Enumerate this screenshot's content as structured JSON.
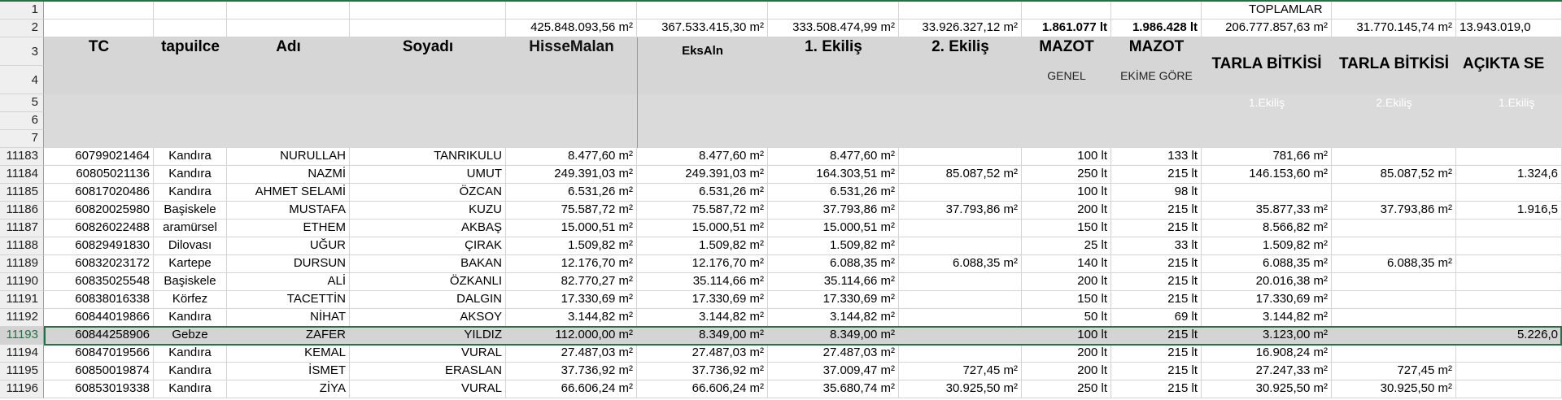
{
  "header": {
    "totals_title": "TOPLAMLAR",
    "totals": [
      "425.848.093,56 m²",
      "367.533.415,30 m²",
      "333.508.474,99 m²",
      "33.926.327,12 m²",
      "1.861.077 lt",
      "1.986.428 lt",
      "206.777.857,63 m²",
      "31.770.145,74 m²",
      "13.943.019,0"
    ],
    "columns": [
      "TC",
      "tapuilce",
      "Adı",
      "Soyadı",
      "HisseMalan",
      "EksAln",
      "1. Ekiliş",
      "2. Ekiliş",
      "MAZOT",
      "MAZOT",
      "TARLA BİTKİSİ",
      "TARLA BİTKİSİ",
      "AÇIKTA SE"
    ],
    "mazot_sub": [
      "GENEL",
      "EKİME GÖRE"
    ],
    "sub_labels": [
      "1.Ekiliş",
      "2.Ekiliş",
      "1.Ekiliş"
    ]
  },
  "row_numbers": [
    "1",
    "2",
    "3",
    "4",
    "5",
    "6",
    "7"
  ],
  "rows": [
    {
      "n": "11183",
      "tc": "60799021464",
      "ilce": "Kandıra",
      "ad": "NURULLAH",
      "soyad": "TANRIKULU",
      "hisse": "8.477,60 m²",
      "eks": "8.477,60 m²",
      "e1": "8.477,60 m²",
      "e2": "",
      "mg": "100 lt",
      "me": "133 lt",
      "t1": "781,66 m²",
      "t2": "",
      "ac": ""
    },
    {
      "n": "11184",
      "tc": "60805021136",
      "ilce": "Kandıra",
      "ad": "NAZMİ",
      "soyad": "UMUT",
      "hisse": "249.391,03 m²",
      "eks": "249.391,03 m²",
      "e1": "164.303,51 m²",
      "e2": "85.087,52 m²",
      "mg": "250 lt",
      "me": "215 lt",
      "t1": "146.153,60 m²",
      "t2": "85.087,52 m²",
      "ac": "1.324,6"
    },
    {
      "n": "11185",
      "tc": "60817020486",
      "ilce": "Kandıra",
      "ad": "AHMET SELAMİ",
      "soyad": "ÖZCAN",
      "hisse": "6.531,26 m²",
      "eks": "6.531,26 m²",
      "e1": "6.531,26 m²",
      "e2": "",
      "mg": "100 lt",
      "me": "98 lt",
      "t1": "",
      "t2": "",
      "ac": ""
    },
    {
      "n": "11186",
      "tc": "60820025980",
      "ilce": "Başiskele",
      "ad": "MUSTAFA",
      "soyad": "KUZU",
      "hisse": "75.587,72 m²",
      "eks": "75.587,72 m²",
      "e1": "37.793,86 m²",
      "e2": "37.793,86 m²",
      "mg": "200 lt",
      "me": "215 lt",
      "t1": "35.877,33 m²",
      "t2": "37.793,86 m²",
      "ac": "1.916,5"
    },
    {
      "n": "11187",
      "tc": "60826022488",
      "ilce": "aramürsel",
      "ad": "ETHEM",
      "soyad": "AKBAŞ",
      "hisse": "15.000,51 m²",
      "eks": "15.000,51 m²",
      "e1": "15.000,51 m²",
      "e2": "",
      "mg": "150 lt",
      "me": "215 lt",
      "t1": "8.566,82 m²",
      "t2": "",
      "ac": ""
    },
    {
      "n": "11188",
      "tc": "60829491830",
      "ilce": "Dilovası",
      "ad": "UĞUR",
      "soyad": "ÇIRAK",
      "hisse": "1.509,82 m²",
      "eks": "1.509,82 m²",
      "e1": "1.509,82 m²",
      "e2": "",
      "mg": "25 lt",
      "me": "33 lt",
      "t1": "1.509,82 m²",
      "t2": "",
      "ac": ""
    },
    {
      "n": "11189",
      "tc": "60832023172",
      "ilce": "Kartepe",
      "ad": "DURSUN",
      "soyad": "BAKAN",
      "hisse": "12.176,70 m²",
      "eks": "12.176,70 m²",
      "e1": "6.088,35 m²",
      "e2": "6.088,35 m²",
      "mg": "140 lt",
      "me": "215 lt",
      "t1": "6.088,35 m²",
      "t2": "6.088,35 m²",
      "ac": ""
    },
    {
      "n": "11190",
      "tc": "60835025548",
      "ilce": "Başiskele",
      "ad": "ALİ",
      "soyad": "ÖZKANLI",
      "hisse": "82.770,27 m²",
      "eks": "35.114,66 m²",
      "e1": "35.114,66 m²",
      "e2": "",
      "mg": "200 lt",
      "me": "215 lt",
      "t1": "20.016,38 m²",
      "t2": "",
      "ac": ""
    },
    {
      "n": "11191",
      "tc": "60838016338",
      "ilce": "Körfez",
      "ad": "TACETTİN",
      "soyad": "DALGIN",
      "hisse": "17.330,69 m²",
      "eks": "17.330,69 m²",
      "e1": "17.330,69 m²",
      "e2": "",
      "mg": "150 lt",
      "me": "215 lt",
      "t1": "17.330,69 m²",
      "t2": "",
      "ac": ""
    },
    {
      "n": "11192",
      "tc": "60844019866",
      "ilce": "Kandıra",
      "ad": "NİHAT",
      "soyad": "AKSOY",
      "hisse": "3.144,82 m²",
      "eks": "3.144,82 m²",
      "e1": "3.144,82 m²",
      "e2": "",
      "mg": "50 lt",
      "me": "69 lt",
      "t1": "3.144,82 m²",
      "t2": "",
      "ac": ""
    },
    {
      "n": "11193",
      "tc": "60844258906",
      "ilce": "Gebze",
      "ad": "ZAFER",
      "soyad": "YILDIZ",
      "hisse": "112.000,00 m²",
      "eks": "8.349,00 m²",
      "e1": "8.349,00 m²",
      "e2": "",
      "mg": "100 lt",
      "me": "215 lt",
      "t1": "3.123,00 m²",
      "t2": "",
      "ac": "5.226,0"
    },
    {
      "n": "11194",
      "tc": "60847019566",
      "ilce": "Kandıra",
      "ad": "KEMAL",
      "soyad": "VURAL",
      "hisse": "27.487,03 m²",
      "eks": "27.487,03 m²",
      "e1": "27.487,03 m²",
      "e2": "",
      "mg": "200 lt",
      "me": "215 lt",
      "t1": "16.908,24 m²",
      "t2": "",
      "ac": ""
    },
    {
      "n": "11195",
      "tc": "60850019874",
      "ilce": "Kandıra",
      "ad": "İSMET",
      "soyad": "ERASLAN",
      "hisse": "37.736,92 m²",
      "eks": "37.736,92 m²",
      "e1": "37.009,47 m²",
      "e2": "727,45 m²",
      "mg": "200 lt",
      "me": "215 lt",
      "t1": "27.247,33 m²",
      "t2": "727,45 m²",
      "ac": ""
    },
    {
      "n": "11196",
      "tc": "60853019338",
      "ilce": "Kandıra",
      "ad": "ZİYA",
      "soyad": "VURAL",
      "hisse": "66.606,24 m²",
      "eks": "66.606,24 m²",
      "e1": "35.680,74 m²",
      "e2": "30.925,50 m²",
      "mg": "250 lt",
      "me": "215 lt",
      "t1": "30.925,50 m²",
      "t2": "30.925,50 m²",
      "ac": ""
    }
  ],
  "selected_row": "11193",
  "colors": {
    "accent": "#217346",
    "header_gray": "#d6d6d6",
    "row_header": "#efefef"
  }
}
